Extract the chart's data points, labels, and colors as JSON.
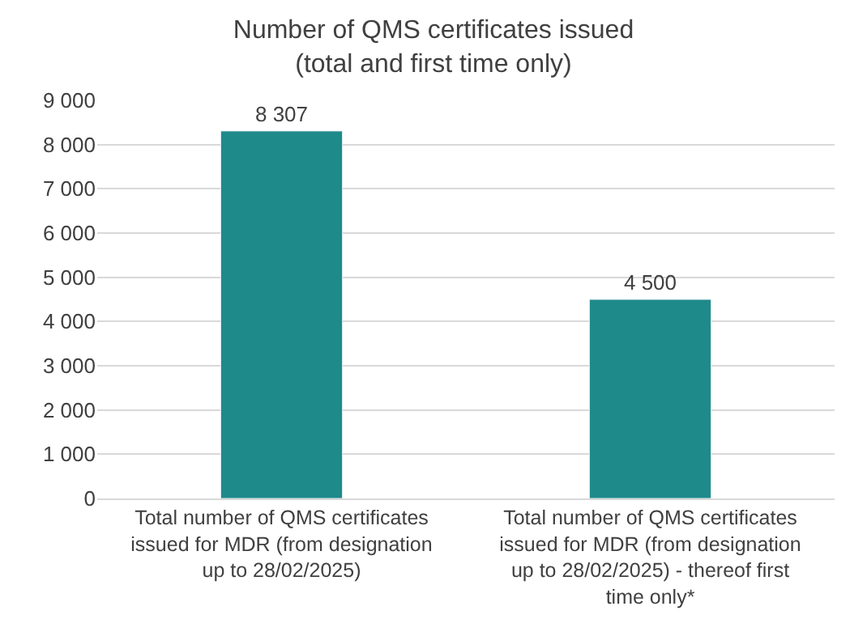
{
  "chart_data": {
    "type": "bar",
    "title": "Number of QMS certificates issued\n(total and first time only)",
    "categories": [
      "Total number of QMS certificates issued for MDR (from designation up to 28/02/2025)",
      "Total number of QMS certificates issued for MDR (from designation up to 28/02/2025) - thereof first time only*"
    ],
    "values": [
      8307,
      4500
    ],
    "value_labels": [
      "8 307",
      "4 500"
    ],
    "color": "#1f8a8a",
    "ylim": [
      0,
      9000
    ],
    "yticks": [
      {
        "value": 0,
        "label": "0"
      },
      {
        "value": 1000,
        "label": "1 000"
      },
      {
        "value": 2000,
        "label": "2 000"
      },
      {
        "value": 3000,
        "label": "3 000"
      },
      {
        "value": 4000,
        "label": "4 000"
      },
      {
        "value": 5000,
        "label": "5 000"
      },
      {
        "value": 6000,
        "label": "6 000"
      },
      {
        "value": 7000,
        "label": "7 000"
      },
      {
        "value": 8000,
        "label": "8 000"
      },
      {
        "value": 9000,
        "label": "9 000"
      }
    ],
    "grid": "y"
  }
}
